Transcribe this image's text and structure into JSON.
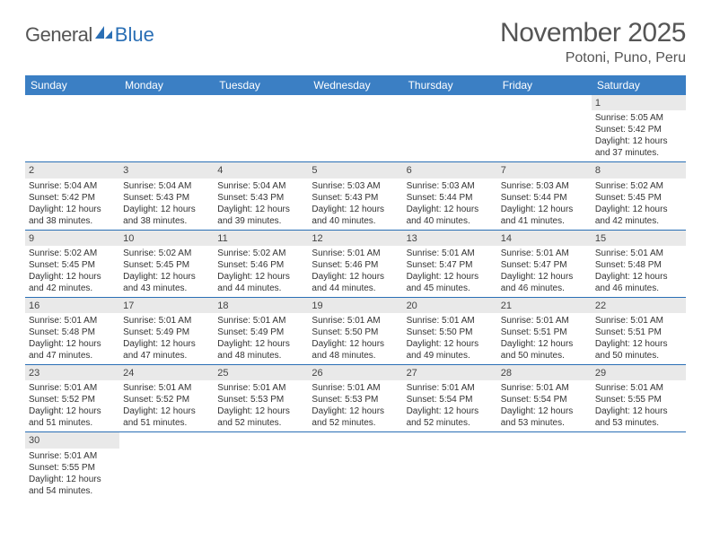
{
  "brand": {
    "part1": "General",
    "part2": "Blue"
  },
  "title": "November 2025",
  "location": "Potoni, Puno, Peru",
  "colors": {
    "header_bg": "#3b7fc4",
    "header_text": "#ffffff",
    "rule": "#2a6fb5",
    "daynum_bg": "#e9e9e9",
    "body_text": "#333333",
    "title_text": "#555555"
  },
  "typography": {
    "title_fontsize": 30,
    "location_fontsize": 16,
    "weekday_fontsize": 12,
    "cell_fontsize": 10
  },
  "weekdays": [
    "Sunday",
    "Monday",
    "Tuesday",
    "Wednesday",
    "Thursday",
    "Friday",
    "Saturday"
  ],
  "weeks": [
    [
      null,
      null,
      null,
      null,
      null,
      null,
      {
        "n": 1,
        "sunrise": "5:05 AM",
        "sunset": "5:42 PM",
        "dl_h": 12,
        "dl_m": 37
      }
    ],
    [
      {
        "n": 2,
        "sunrise": "5:04 AM",
        "sunset": "5:42 PM",
        "dl_h": 12,
        "dl_m": 38
      },
      {
        "n": 3,
        "sunrise": "5:04 AM",
        "sunset": "5:43 PM",
        "dl_h": 12,
        "dl_m": 38
      },
      {
        "n": 4,
        "sunrise": "5:04 AM",
        "sunset": "5:43 PM",
        "dl_h": 12,
        "dl_m": 39
      },
      {
        "n": 5,
        "sunrise": "5:03 AM",
        "sunset": "5:43 PM",
        "dl_h": 12,
        "dl_m": 40
      },
      {
        "n": 6,
        "sunrise": "5:03 AM",
        "sunset": "5:44 PM",
        "dl_h": 12,
        "dl_m": 40
      },
      {
        "n": 7,
        "sunrise": "5:03 AM",
        "sunset": "5:44 PM",
        "dl_h": 12,
        "dl_m": 41
      },
      {
        "n": 8,
        "sunrise": "5:02 AM",
        "sunset": "5:45 PM",
        "dl_h": 12,
        "dl_m": 42
      }
    ],
    [
      {
        "n": 9,
        "sunrise": "5:02 AM",
        "sunset": "5:45 PM",
        "dl_h": 12,
        "dl_m": 42
      },
      {
        "n": 10,
        "sunrise": "5:02 AM",
        "sunset": "5:45 PM",
        "dl_h": 12,
        "dl_m": 43
      },
      {
        "n": 11,
        "sunrise": "5:02 AM",
        "sunset": "5:46 PM",
        "dl_h": 12,
        "dl_m": 44
      },
      {
        "n": 12,
        "sunrise": "5:01 AM",
        "sunset": "5:46 PM",
        "dl_h": 12,
        "dl_m": 44
      },
      {
        "n": 13,
        "sunrise": "5:01 AM",
        "sunset": "5:47 PM",
        "dl_h": 12,
        "dl_m": 45
      },
      {
        "n": 14,
        "sunrise": "5:01 AM",
        "sunset": "5:47 PM",
        "dl_h": 12,
        "dl_m": 46
      },
      {
        "n": 15,
        "sunrise": "5:01 AM",
        "sunset": "5:48 PM",
        "dl_h": 12,
        "dl_m": 46
      }
    ],
    [
      {
        "n": 16,
        "sunrise": "5:01 AM",
        "sunset": "5:48 PM",
        "dl_h": 12,
        "dl_m": 47
      },
      {
        "n": 17,
        "sunrise": "5:01 AM",
        "sunset": "5:49 PM",
        "dl_h": 12,
        "dl_m": 47
      },
      {
        "n": 18,
        "sunrise": "5:01 AM",
        "sunset": "5:49 PM",
        "dl_h": 12,
        "dl_m": 48
      },
      {
        "n": 19,
        "sunrise": "5:01 AM",
        "sunset": "5:50 PM",
        "dl_h": 12,
        "dl_m": 48
      },
      {
        "n": 20,
        "sunrise": "5:01 AM",
        "sunset": "5:50 PM",
        "dl_h": 12,
        "dl_m": 49
      },
      {
        "n": 21,
        "sunrise": "5:01 AM",
        "sunset": "5:51 PM",
        "dl_h": 12,
        "dl_m": 50
      },
      {
        "n": 22,
        "sunrise": "5:01 AM",
        "sunset": "5:51 PM",
        "dl_h": 12,
        "dl_m": 50
      }
    ],
    [
      {
        "n": 23,
        "sunrise": "5:01 AM",
        "sunset": "5:52 PM",
        "dl_h": 12,
        "dl_m": 51
      },
      {
        "n": 24,
        "sunrise": "5:01 AM",
        "sunset": "5:52 PM",
        "dl_h": 12,
        "dl_m": 51
      },
      {
        "n": 25,
        "sunrise": "5:01 AM",
        "sunset": "5:53 PM",
        "dl_h": 12,
        "dl_m": 52
      },
      {
        "n": 26,
        "sunrise": "5:01 AM",
        "sunset": "5:53 PM",
        "dl_h": 12,
        "dl_m": 52
      },
      {
        "n": 27,
        "sunrise": "5:01 AM",
        "sunset": "5:54 PM",
        "dl_h": 12,
        "dl_m": 52
      },
      {
        "n": 28,
        "sunrise": "5:01 AM",
        "sunset": "5:54 PM",
        "dl_h": 12,
        "dl_m": 53
      },
      {
        "n": 29,
        "sunrise": "5:01 AM",
        "sunset": "5:55 PM",
        "dl_h": 12,
        "dl_m": 53
      }
    ],
    [
      {
        "n": 30,
        "sunrise": "5:01 AM",
        "sunset": "5:55 PM",
        "dl_h": 12,
        "dl_m": 54
      },
      null,
      null,
      null,
      null,
      null,
      null
    ]
  ],
  "labels": {
    "sunrise_prefix": "Sunrise: ",
    "sunset_prefix": "Sunset: ",
    "daylight_prefix": "Daylight: ",
    "hours_word": " hours",
    "and_word": "and ",
    "minutes_word": " minutes."
  }
}
